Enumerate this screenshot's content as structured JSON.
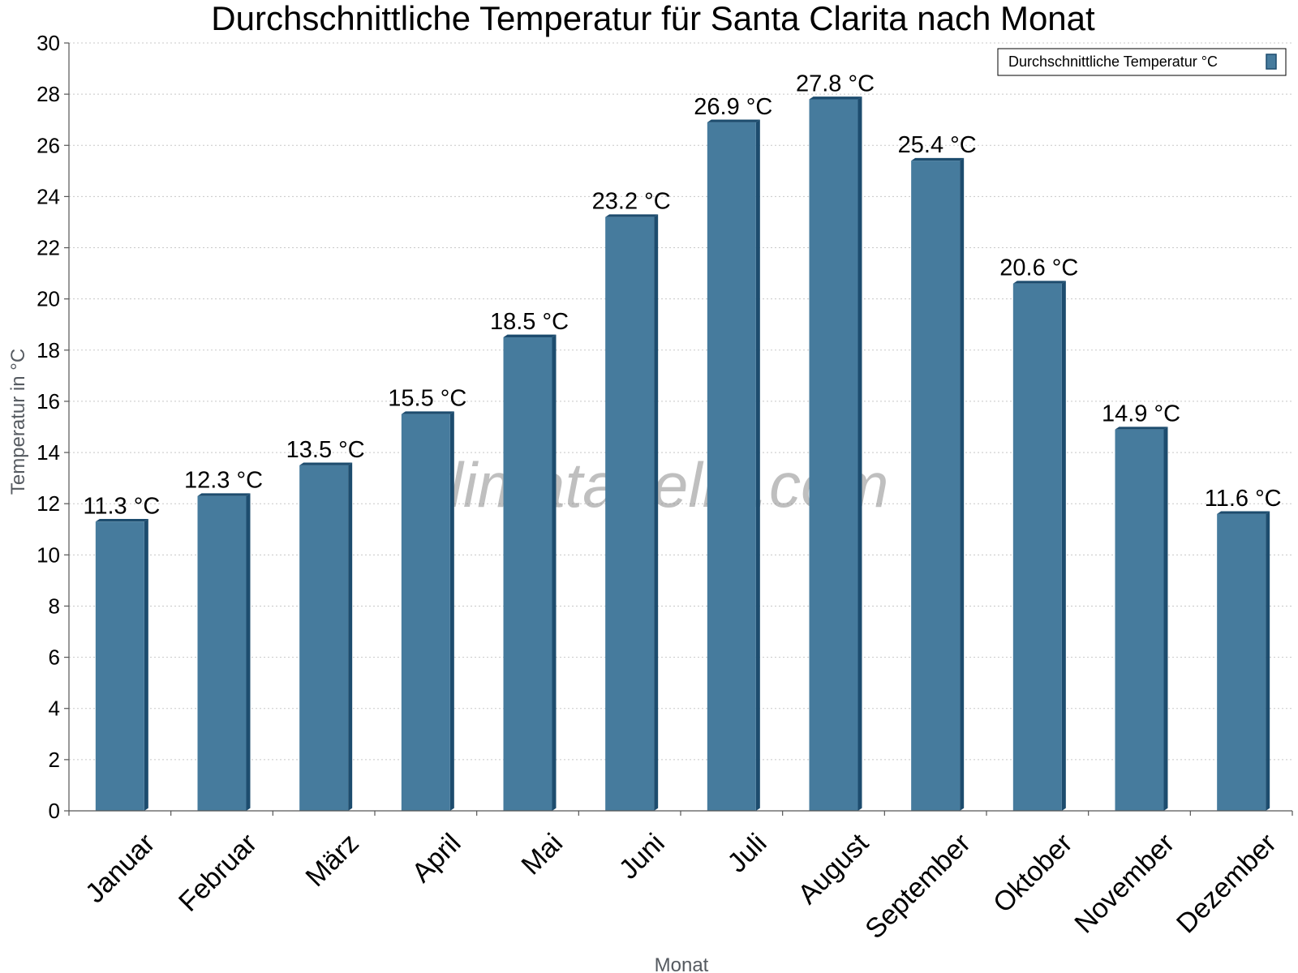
{
  "chart_data": {
    "type": "bar",
    "title": "Durchschnittliche Temperatur für Santa Clarita nach Monat",
    "xlabel": "Monat",
    "ylabel": "Temperatur in °C",
    "categories": [
      "Januar",
      "Februar",
      "März",
      "April",
      "Mai",
      "Juni",
      "Juli",
      "August",
      "September",
      "Oktober",
      "November",
      "Dezember"
    ],
    "series": [
      {
        "name": "Durchschnittliche Temperatur °C",
        "values": [
          11.3,
          12.3,
          13.5,
          15.5,
          18.5,
          23.2,
          26.9,
          27.8,
          25.4,
          20.6,
          14.9,
          11.6
        ],
        "color": "#467b9d"
      }
    ],
    "data_labels": [
      "11.3 °C",
      "12.3 °C",
      "13.5 °C",
      "15.5 °C",
      "18.5 °C",
      "23.2 °C",
      "26.9 °C",
      "27.8 °C",
      "25.4 °C",
      "20.6 °C",
      "14.9 °C",
      "11.6 °C"
    ],
    "ylim": [
      0,
      30
    ],
    "yticks": [
      "0",
      "2",
      "4",
      "6",
      "8",
      "10",
      "12",
      "14",
      "16",
      "18",
      "20",
      "22",
      "24",
      "26",
      "28",
      "30"
    ],
    "grid": true,
    "legend_position": "top-right",
    "watermark": "klimatabelle.com",
    "colors": {
      "bar": "#467b9d",
      "bar_shade": "#1d4c6e",
      "grid": "#c8c8c8"
    }
  }
}
